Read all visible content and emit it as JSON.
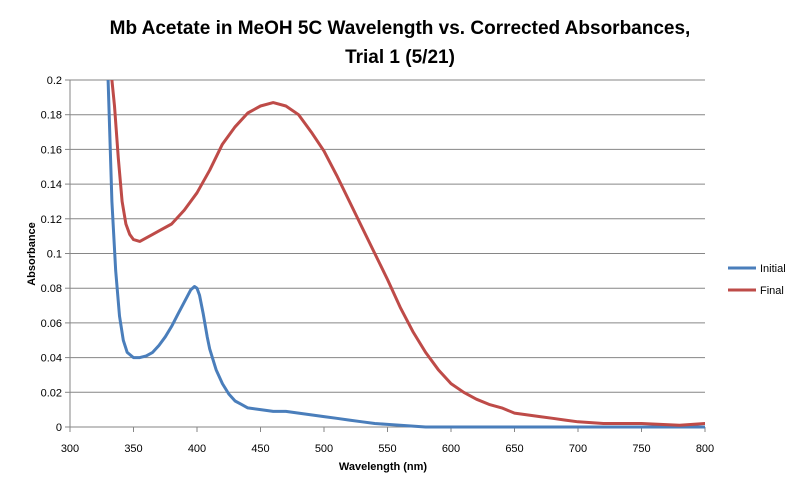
{
  "chart_data": {
    "type": "line",
    "title_line1": "Mb Acetate in MeOH 5C Wavelength vs. Corrected Absorbances,",
    "title_line2": "Trial 1 (5/21)",
    "xlabel": "Wavelength (nm)",
    "ylabel": "Absorbance",
    "xlim": [
      300,
      800
    ],
    "ylim": [
      0,
      0.2
    ],
    "x_ticks": [
      "300",
      "350",
      "400",
      "450",
      "500",
      "550",
      "600",
      "650",
      "700",
      "750",
      "800"
    ],
    "y_ticks": [
      "0",
      "0.02",
      "0.04",
      "0.06",
      "0.08",
      "0.1",
      "0.12",
      "0.14",
      "0.16",
      "0.18",
      "0.2"
    ],
    "grid": "horizontal",
    "legend_position": "right",
    "series": [
      {
        "name": "Initial",
        "color": "#4a7ebb",
        "x": [
          330,
          333,
          336,
          339,
          342,
          345,
          350,
          355,
          360,
          365,
          370,
          375,
          380,
          385,
          390,
          395,
          398,
          400,
          402,
          405,
          408,
          410,
          415,
          420,
          425,
          430,
          435,
          440,
          450,
          460,
          470,
          480,
          490,
          500,
          510,
          520,
          530,
          540,
          550,
          560,
          570,
          580,
          600,
          650,
          700,
          750,
          800
        ],
        "values": [
          0.2,
          0.13,
          0.09,
          0.064,
          0.05,
          0.043,
          0.04,
          0.04,
          0.041,
          0.043,
          0.047,
          0.052,
          0.058,
          0.065,
          0.072,
          0.079,
          0.081,
          0.08,
          0.076,
          0.065,
          0.052,
          0.045,
          0.033,
          0.025,
          0.019,
          0.015,
          0.013,
          0.011,
          0.01,
          0.009,
          0.009,
          0.008,
          0.007,
          0.006,
          0.005,
          0.004,
          0.003,
          0.002,
          0.0015,
          0.001,
          0.0005,
          0.0,
          0.0,
          0.0,
          0.0,
          0.0,
          0.0
        ]
      },
      {
        "name": "Final",
        "color": "#be4b48",
        "x": [
          333,
          335,
          338,
          341,
          344,
          347,
          350,
          355,
          360,
          365,
          370,
          380,
          390,
          400,
          410,
          420,
          430,
          440,
          450,
          460,
          470,
          480,
          490,
          500,
          510,
          520,
          530,
          540,
          550,
          560,
          570,
          580,
          590,
          600,
          610,
          620,
          630,
          640,
          650,
          660,
          670,
          680,
          690,
          700,
          720,
          750,
          780,
          800
        ],
        "values": [
          0.2,
          0.185,
          0.155,
          0.13,
          0.117,
          0.111,
          0.108,
          0.107,
          0.109,
          0.111,
          0.113,
          0.117,
          0.125,
          0.135,
          0.148,
          0.163,
          0.173,
          0.181,
          0.185,
          0.187,
          0.185,
          0.18,
          0.17,
          0.159,
          0.145,
          0.13,
          0.115,
          0.1,
          0.085,
          0.069,
          0.055,
          0.043,
          0.033,
          0.025,
          0.02,
          0.016,
          0.013,
          0.011,
          0.008,
          0.007,
          0.006,
          0.005,
          0.004,
          0.003,
          0.002,
          0.002,
          0.001,
          0.002
        ]
      }
    ]
  }
}
